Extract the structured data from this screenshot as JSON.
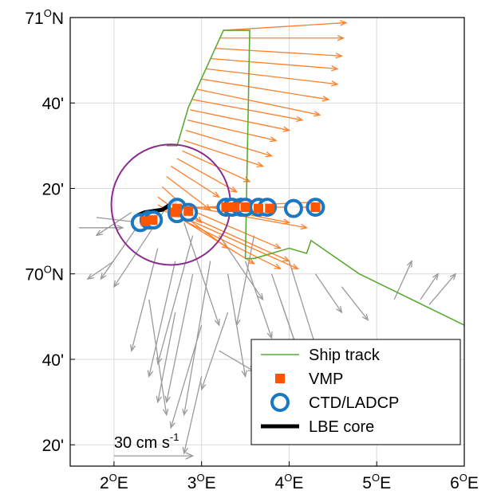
{
  "chart_data": {
    "type": "vector-map",
    "x_axis": {
      "range": [
        1.5,
        6.0
      ],
      "ticks": [
        {
          "value": 2,
          "label": "2",
          "sup": "O",
          "suffix": "E"
        },
        {
          "value": 3,
          "label": "3",
          "sup": "O",
          "suffix": "E"
        },
        {
          "value": 4,
          "label": "4",
          "sup": "O",
          "suffix": "E"
        },
        {
          "value": 5,
          "label": "5",
          "sup": "O",
          "suffix": "E"
        },
        {
          "value": 6,
          "label": "6",
          "sup": "O",
          "suffix": "E"
        }
      ]
    },
    "y_axis": {
      "range": [
        69.25,
        71.0
      ],
      "ticks": [
        {
          "value": 71.0,
          "label": "71",
          "sup": "O",
          "suffix": "N"
        },
        {
          "value": 70.6667,
          "label": "40'",
          "sup": "",
          "suffix": ""
        },
        {
          "value": 70.3333,
          "label": "20'",
          "sup": "",
          "suffix": ""
        },
        {
          "value": 70.0,
          "label": "70",
          "sup": "O",
          "suffix": "N"
        },
        {
          "value": 69.6667,
          "label": "40'",
          "sup": "",
          "suffix": ""
        },
        {
          "value": 69.3333,
          "label": "20'",
          "sup": "",
          "suffix": ""
        }
      ]
    },
    "grid": true,
    "legend": {
      "placement": "bottom-right",
      "entries": [
        {
          "label": "Ship track",
          "kind": "line",
          "color": "#5aaa32"
        },
        {
          "label": "VMP",
          "kind": "square",
          "color": "#ff5500"
        },
        {
          "label": "CTD/LADCP",
          "kind": "circle",
          "color": "#1a78c2"
        },
        {
          "label": "LBE core",
          "kind": "thick-line",
          "color": "#000000"
        }
      ]
    },
    "scale_arrow": {
      "label": "30 cm s",
      "exponent": "-1",
      "value_cm_s": 30,
      "origin": [
        2.0,
        69.29
      ]
    },
    "colors": {
      "track": "#5aaa32",
      "vmp": "#ff5500",
      "ctd": "#1a78c2",
      "core": "#000000",
      "orange_arrows": "#ff7f2a",
      "gray_arrows": "#9a9a9a",
      "eddy_circle": "#8a2b8f"
    },
    "ship_track": {
      "x": [
        2.6,
        2.72,
        2.85,
        3.05,
        3.25,
        3.55,
        3.5,
        3.6,
        4.0,
        4.2,
        4.25,
        4.8,
        5.4,
        6.0
      ],
      "y": [
        70.5,
        70.5,
        70.65,
        70.8,
        70.95,
        70.95,
        70.06,
        70.06,
        70.1,
        70.08,
        70.13,
        70.0,
        69.9,
        69.8
      ]
    },
    "lbe_core": {
      "x": [
        2.28,
        2.35,
        2.45,
        2.55,
        2.62,
        2.7
      ],
      "y": [
        70.23,
        70.24,
        70.245,
        70.25,
        70.265,
        70.28
      ]
    },
    "eddy_circle": {
      "center": [
        2.65,
        70.27
      ],
      "radius_lon": 0.68,
      "radius_lat": 0.235
    },
    "ctd_stations": {
      "x": [
        2.3,
        2.4,
        2.45,
        2.72,
        2.72,
        2.85,
        3.28,
        3.35,
        3.45,
        3.5,
        3.65,
        3.75,
        4.05,
        4.3
      ],
      "y": [
        70.2,
        70.21,
        70.21,
        70.235,
        70.26,
        70.24,
        70.26,
        70.26,
        70.26,
        70.26,
        70.26,
        70.26,
        70.255,
        70.26
      ]
    },
    "vmp_stations": {
      "x": [
        2.36,
        2.44,
        2.7,
        2.72,
        2.85,
        3.28,
        3.38,
        3.5,
        3.65,
        3.78,
        4.3
      ],
      "y": [
        70.205,
        70.21,
        70.24,
        70.255,
        70.245,
        70.26,
        70.26,
        70.26,
        70.255,
        70.255,
        70.26
      ]
    },
    "orange_vectors": {
      "note": "velocity vectors: start lon/lat, end lon/lat",
      "segments": [
        [
          3.25,
          70.95,
          4.65,
          70.98
        ],
        [
          3.2,
          70.92,
          4.62,
          70.92
        ],
        [
          3.15,
          70.88,
          4.6,
          70.85
        ],
        [
          3.1,
          70.84,
          4.55,
          70.8
        ],
        [
          3.05,
          70.8,
          4.55,
          70.74
        ],
        [
          3.0,
          70.76,
          4.45,
          70.68
        ],
        [
          2.95,
          70.72,
          4.35,
          70.62
        ],
        [
          2.9,
          70.68,
          4.15,
          70.6
        ],
        [
          2.87,
          70.64,
          4.0,
          70.56
        ],
        [
          2.84,
          70.6,
          3.85,
          70.52
        ],
        [
          2.82,
          70.56,
          3.8,
          70.46
        ],
        [
          2.8,
          70.52,
          3.7,
          70.42
        ],
        [
          2.78,
          70.48,
          3.55,
          70.36
        ],
        [
          2.72,
          70.45,
          3.4,
          70.32
        ],
        [
          2.65,
          70.42,
          3.2,
          70.3
        ],
        [
          2.6,
          70.38,
          3.1,
          70.25
        ],
        [
          2.55,
          70.34,
          3.0,
          70.2
        ],
        [
          2.5,
          70.3,
          3.3,
          70.1
        ],
        [
          2.5,
          70.27,
          3.6,
          70.04
        ],
        [
          2.55,
          70.25,
          3.9,
          70.02
        ],
        [
          2.6,
          70.25,
          4.1,
          70.02
        ],
        [
          2.7,
          70.25,
          4.0,
          70.05
        ],
        [
          2.8,
          70.26,
          3.9,
          70.1
        ],
        [
          2.9,
          70.26,
          4.2,
          70.18
        ],
        [
          3.0,
          70.26,
          4.3,
          70.28
        ],
        [
          2.75,
          70.26,
          4.4,
          70.26
        ],
        [
          3.1,
          70.26,
          4.0,
          70.2
        ]
      ]
    },
    "gray_vectors": {
      "note": "velocity vectors: start lon/lat, end lon/lat",
      "segments": [
        [
          1.6,
          70.18,
          2.1,
          70.18
        ],
        [
          1.8,
          70.22,
          2.3,
          70.2
        ],
        [
          2.2,
          70.24,
          1.8,
          70.15
        ],
        [
          2.4,
          70.25,
          1.85,
          69.98
        ],
        [
          2.6,
          70.26,
          2.0,
          69.95
        ],
        [
          2.5,
          70.1,
          2.2,
          69.7
        ],
        [
          2.7,
          70.05,
          2.4,
          69.6
        ],
        [
          2.9,
          70.0,
          2.6,
          69.5
        ],
        [
          3.1,
          70.05,
          2.8,
          69.45
        ],
        [
          2.8,
          70.2,
          3.2,
          69.8
        ],
        [
          3.3,
          70.0,
          3.5,
          69.6
        ],
        [
          3.5,
          70.05,
          3.8,
          69.75
        ],
        [
          3.8,
          70.0,
          4.1,
          69.7
        ],
        [
          4.0,
          70.05,
          4.3,
          69.72
        ],
        [
          3.6,
          70.15,
          3.4,
          69.8
        ],
        [
          2.4,
          69.9,
          2.6,
          69.45
        ],
        [
          3.0,
          69.8,
          2.65,
          69.4
        ],
        [
          3.3,
          69.85,
          3.0,
          69.55
        ],
        [
          4.3,
          70.0,
          4.6,
          69.85
        ],
        [
          4.6,
          69.95,
          4.9,
          69.82
        ],
        [
          5.2,
          69.9,
          5.4,
          70.05
        ],
        [
          5.5,
          69.9,
          5.7,
          70.0
        ],
        [
          5.6,
          69.88,
          5.9,
          70.0
        ],
        [
          2.0,
          70.05,
          1.7,
          69.98
        ],
        [
          3.2,
          70.15,
          3.7,
          69.9
        ],
        [
          2.9,
          70.15,
          2.5,
          69.65
        ],
        [
          3.0,
          69.6,
          2.8,
          69.3
        ],
        [
          2.7,
          69.85,
          2.5,
          69.5
        ],
        [
          3.9,
          69.9,
          4.2,
          69.6
        ],
        [
          3.2,
          69.7,
          3.6,
          69.62
        ]
      ]
    }
  }
}
